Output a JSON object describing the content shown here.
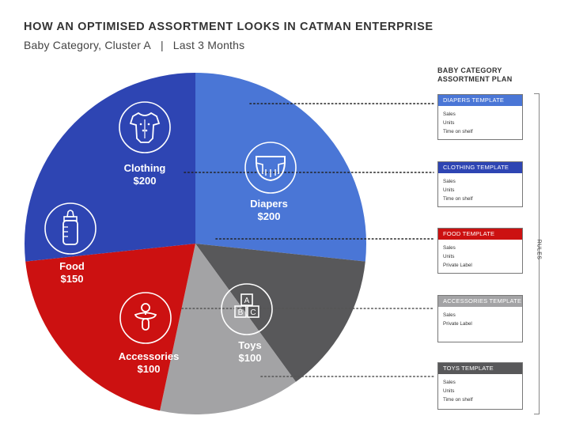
{
  "header": {
    "title": "HOW AN OPTIMISED ASSORTMENT LOOKS IN CATMAN ENTERPRISE",
    "subtitle_left": "Baby Category, Cluster A",
    "subtitle_sep": "|",
    "subtitle_right": "Last 3 Months"
  },
  "chart_data": {
    "type": "pie",
    "title": "HOW AN OPTIMISED ASSORTMENT LOOKS IN CATMAN ENTERPRISE",
    "slices": [
      {
        "name": "Diapers",
        "label": "$200",
        "value": 200,
        "color": "#4a76d6",
        "icon": "diaper-icon"
      },
      {
        "name": "Toys",
        "label": "$100",
        "value": 100,
        "color": "#58585a",
        "icon": "abc-blocks-icon"
      },
      {
        "name": "Accessories",
        "label": "$100",
        "value": 100,
        "color": "#a3a3a5",
        "icon": "pacifier-icon"
      },
      {
        "name": "Food",
        "label": "$150",
        "value": 150,
        "color": "#cc1111",
        "icon": "baby-bottle-icon"
      },
      {
        "name": "Clothing",
        "label": "$200",
        "value": 200,
        "color": "#2e45b3",
        "icon": "onesie-icon"
      }
    ]
  },
  "plan": {
    "heading_line1": "BABY CATEGORY",
    "heading_line2": "ASSORTMENT PLAN",
    "rules_label": "RULES",
    "templates": [
      {
        "name": "DIAPERS TEMPLATE",
        "color": "#4a76d6",
        "rows": [
          "Sales",
          "Units",
          "Time on shelf"
        ]
      },
      {
        "name": "CLOTHING TEMPLATE",
        "color": "#2e45b3",
        "rows": [
          "Sales",
          "Units",
          "Time on shelf"
        ]
      },
      {
        "name": "FOOD TEMPLATE",
        "color": "#cc1111",
        "rows": [
          "Sales",
          "Units",
          "Private Label"
        ]
      },
      {
        "name": "ACCESSORIES TEMPLATE",
        "color": "#a3a3a5",
        "rows": [
          "Sales",
          "Private Label"
        ]
      },
      {
        "name": "TOYS TEMPLATE",
        "color": "#58585a",
        "rows": [
          "Sales",
          "Units",
          "Time on shelf"
        ]
      }
    ]
  }
}
